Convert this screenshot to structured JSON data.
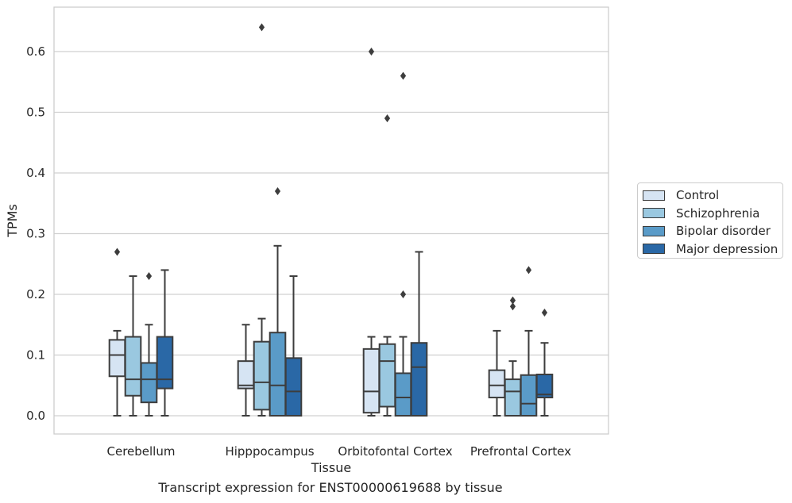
{
  "chart_data": {
    "type": "box",
    "categories": [
      "Cerebellum",
      "Hipppocampus",
      "Orbitofontal Cortex",
      "Prefrontal Cortex"
    ],
    "xlabel": "Tissue",
    "ylabel": "TPMs",
    "ylim": [
      -0.03,
      0.675
    ],
    "yticks": [
      "0.0",
      "0.1",
      "0.2",
      "0.3",
      "0.4",
      "0.5",
      "0.6"
    ],
    "grid": "horizontal",
    "legend_position": "right",
    "caption": "Transcript expression for ENST00000619688 by tissue",
    "series": [
      {
        "name": "Control",
        "color": "#d6e4f3",
        "boxes": [
          {
            "whisker_low": 0.0,
            "q1": 0.065,
            "median": 0.1,
            "q3": 0.125,
            "whisker_high": 0.14,
            "outliers": [
              0.27
            ]
          },
          {
            "whisker_low": 0.0,
            "q1": 0.045,
            "median": 0.05,
            "q3": 0.09,
            "whisker_high": 0.15,
            "outliers": []
          },
          {
            "whisker_low": 0.0,
            "q1": 0.005,
            "median": 0.04,
            "q3": 0.11,
            "whisker_high": 0.13,
            "outliers": [
              0.6
            ]
          },
          {
            "whisker_low": 0.0,
            "q1": 0.03,
            "median": 0.05,
            "q3": 0.075,
            "whisker_high": 0.14,
            "outliers": []
          }
        ]
      },
      {
        "name": "Schizophrenia",
        "color": "#9ac8e0",
        "boxes": [
          {
            "whisker_low": 0.0,
            "q1": 0.033,
            "median": 0.06,
            "q3": 0.13,
            "whisker_high": 0.23,
            "outliers": []
          },
          {
            "whisker_low": 0.0,
            "q1": 0.01,
            "median": 0.055,
            "q3": 0.122,
            "whisker_high": 0.16,
            "outliers": [
              0.64
            ]
          },
          {
            "whisker_low": 0.0,
            "q1": 0.015,
            "median": 0.09,
            "q3": 0.118,
            "whisker_high": 0.13,
            "outliers": [
              0.49
            ]
          },
          {
            "whisker_low": 0.0,
            "q1": 0.0,
            "median": 0.04,
            "q3": 0.06,
            "whisker_high": 0.09,
            "outliers": [
              0.18,
              0.19
            ]
          }
        ]
      },
      {
        "name": "Bipolar disorder",
        "color": "#5a9bc8",
        "boxes": [
          {
            "whisker_low": 0.0,
            "q1": 0.022,
            "median": 0.06,
            "q3": 0.087,
            "whisker_high": 0.15,
            "outliers": [
              0.23
            ]
          },
          {
            "whisker_low": 0.0,
            "q1": 0.0,
            "median": 0.05,
            "q3": 0.137,
            "whisker_high": 0.28,
            "outliers": [
              0.37
            ]
          },
          {
            "whisker_low": 0.0,
            "q1": 0.0,
            "median": 0.03,
            "q3": 0.07,
            "whisker_high": 0.13,
            "outliers": [
              0.2,
              0.56
            ]
          },
          {
            "whisker_low": 0.0,
            "q1": 0.0,
            "median": 0.02,
            "q3": 0.067,
            "whisker_high": 0.14,
            "outliers": [
              0.24
            ]
          }
        ]
      },
      {
        "name": "Major depression",
        "color": "#2a68a6",
        "boxes": [
          {
            "whisker_low": 0.0,
            "q1": 0.045,
            "median": 0.06,
            "q3": 0.13,
            "whisker_high": 0.24,
            "outliers": []
          },
          {
            "whisker_low": 0.0,
            "q1": 0.0,
            "median": 0.04,
            "q3": 0.095,
            "whisker_high": 0.23,
            "outliers": []
          },
          {
            "whisker_low": 0.0,
            "q1": 0.0,
            "median": 0.08,
            "q3": 0.12,
            "whisker_high": 0.27,
            "outliers": []
          },
          {
            "whisker_low": 0.0,
            "q1": 0.03,
            "median": 0.035,
            "q3": 0.068,
            "whisker_high": 0.12,
            "outliers": [
              0.17
            ]
          }
        ]
      }
    ]
  }
}
